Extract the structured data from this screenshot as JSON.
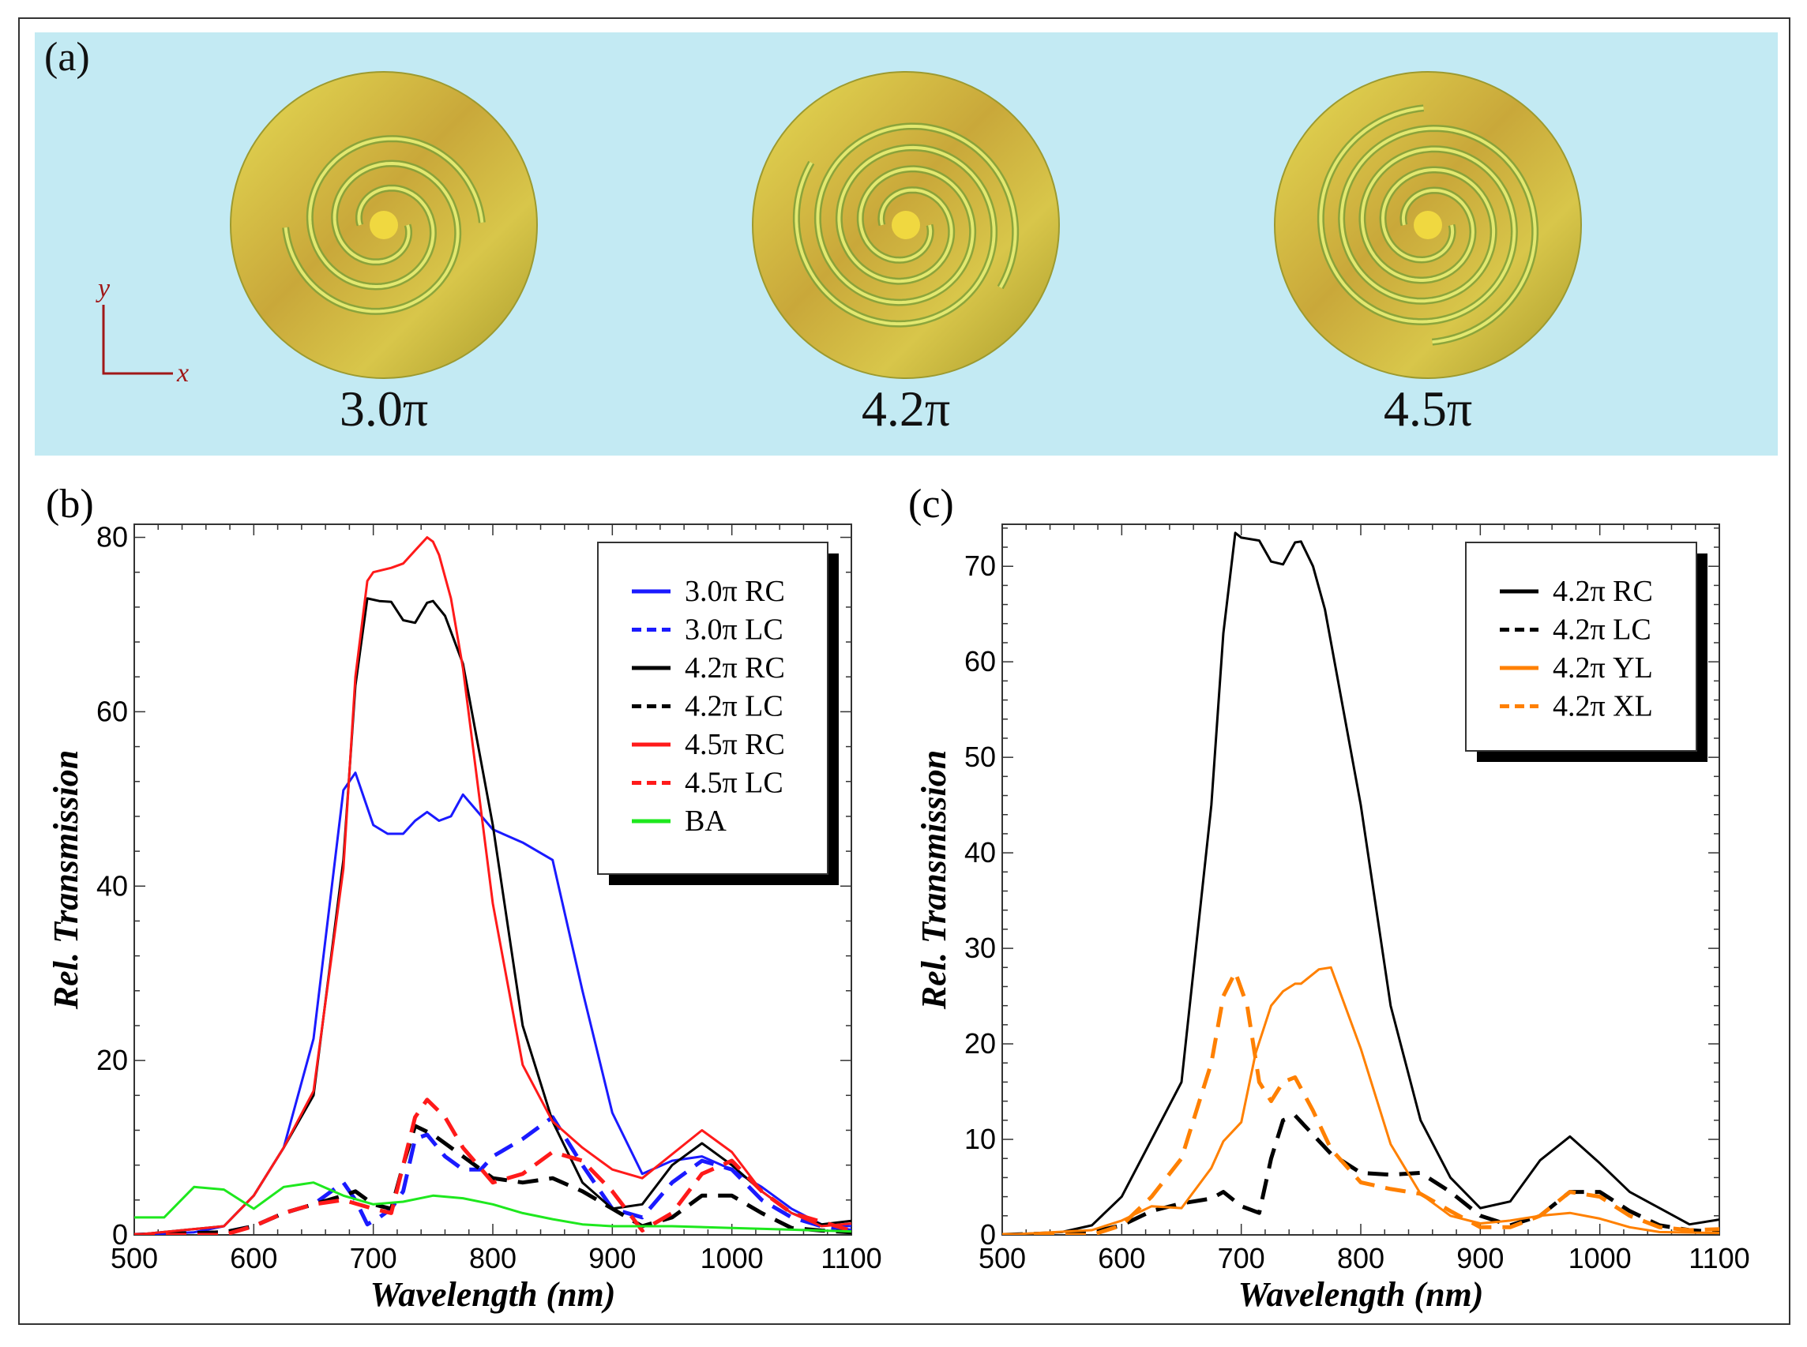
{
  "panel_a": {
    "label": "(a)",
    "axis_y": "y",
    "axis_x": "x",
    "discs": [
      {
        "label": "3.0π",
        "turns": 3.0
      },
      {
        "label": "4.2π",
        "turns": 4.2
      },
      {
        "label": "4.5π",
        "turns": 4.5
      }
    ],
    "colors": {
      "background": "#c3eaf3",
      "gold": "#c9b437",
      "axes": "#a01818"
    }
  },
  "chart_data": [
    {
      "panel_label": "(b)",
      "type": "line",
      "xlabel": "Wavelength (nm)",
      "ylabel": "Rel. Transmission",
      "xlim": [
        500,
        1100
      ],
      "ylim": [
        0,
        81.5
      ],
      "xticks": [
        500,
        600,
        700,
        800,
        900,
        1000,
        1100
      ],
      "yticks": [
        0,
        20,
        40,
        60,
        80
      ],
      "legend": "top-right",
      "series": [
        {
          "name": "3.0π RC",
          "color": "#1a1aff",
          "dash": false,
          "x": [
            500,
            550,
            575,
            600,
            625,
            650,
            675,
            685,
            700,
            712,
            725,
            735,
            745,
            755,
            765,
            775,
            800,
            825,
            850,
            875,
            900,
            925,
            950,
            975,
            1000,
            1025,
            1050,
            1075,
            1100
          ],
          "y": [
            0,
            0.3,
            1,
            4.5,
            10,
            22.5,
            51,
            53,
            47,
            46,
            46,
            47.5,
            48.5,
            47.5,
            48,
            50.5,
            46.5,
            45,
            43,
            28,
            14,
            7,
            8.5,
            9,
            7.5,
            5.5,
            3,
            1.2,
            1
          ]
        },
        {
          "name": "3.0π LC",
          "color": "#1a1aff",
          "dash": true,
          "x": [
            500,
            575,
            600,
            625,
            650,
            675,
            685,
            695,
            705,
            715,
            725,
            735,
            745,
            760,
            775,
            790,
            800,
            825,
            850,
            875,
            900,
            925,
            950,
            975,
            1000,
            1025,
            1050,
            1075,
            1100
          ],
          "y": [
            0,
            0.3,
            1,
            2.5,
            3.5,
            6,
            4,
            1.2,
            2,
            3,
            5,
            11,
            11.5,
            9,
            7.5,
            7.5,
            9,
            11,
            13.5,
            8,
            3,
            2,
            6,
            8.5,
            7.5,
            4,
            2,
            1,
            0.5
          ]
        },
        {
          "name": "4.2π RC",
          "color": "#000000",
          "dash": false,
          "x": [
            500,
            575,
            600,
            625,
            650,
            675,
            685,
            695,
            705,
            715,
            725,
            735,
            745,
            750,
            760,
            775,
            800,
            825,
            850,
            875,
            900,
            925,
            950,
            975,
            1000,
            1025,
            1050,
            1075,
            1100
          ],
          "y": [
            0,
            1,
            4.5,
            10,
            16,
            43,
            63,
            73,
            72.7,
            72.6,
            70.5,
            70.2,
            72.5,
            72.7,
            71,
            65.5,
            47,
            24,
            13,
            6,
            3,
            3.5,
            8,
            10.5,
            8,
            5,
            2.5,
            1.2,
            1.6
          ]
        },
        {
          "name": "4.2π LC",
          "color": "#000000",
          "dash": true,
          "x": [
            500,
            575,
            600,
            625,
            650,
            675,
            685,
            700,
            715,
            725,
            735,
            750,
            775,
            800,
            825,
            850,
            875,
            900,
            925,
            950,
            975,
            1000,
            1025,
            1050,
            1075,
            1100
          ],
          "y": [
            0,
            0.3,
            1,
            2.5,
            3.5,
            4.5,
            5,
            3.5,
            3,
            8,
            12.5,
            11.5,
            9,
            6.5,
            6,
            6.5,
            5,
            3,
            1,
            2,
            4.5,
            4.5,
            2.5,
            0.8,
            0.5,
            0.3
          ]
        },
        {
          "name": "4.5π RC",
          "color": "#ff1a1a",
          "dash": false,
          "x": [
            500,
            575,
            600,
            625,
            650,
            675,
            685,
            695,
            700,
            715,
            725,
            735,
            745,
            750,
            755,
            765,
            775,
            800,
            825,
            850,
            875,
            900,
            925,
            975,
            1000,
            1025,
            1050,
            1075,
            1100
          ],
          "y": [
            0,
            1,
            4.5,
            10,
            16.5,
            42,
            64,
            75,
            76,
            76.5,
            77,
            78.5,
            80,
            79.5,
            78,
            73,
            65,
            38,
            19.5,
            13,
            10,
            7.5,
            6.5,
            12,
            9.5,
            5,
            2.5,
            1,
            1.3
          ]
        },
        {
          "name": "4.5π LC",
          "color": "#ff1a1a",
          "dash": true,
          "x": [
            500,
            575,
            600,
            625,
            650,
            675,
            700,
            715,
            725,
            735,
            745,
            760,
            775,
            800,
            825,
            850,
            875,
            900,
            925,
            950,
            975,
            1000,
            1025,
            1050,
            1075,
            1100
          ],
          "y": [
            0,
            0,
            1,
            2.5,
            3.5,
            4,
            3,
            2.5,
            8,
            13.5,
            15.5,
            13.5,
            10,
            6,
            7,
            9.5,
            8.5,
            5,
            0.5,
            2.5,
            7,
            8.5,
            5,
            2.5,
            1.5,
            0.5
          ]
        },
        {
          "name": "BA",
          "color": "#1ee81e",
          "dash": false,
          "x": [
            500,
            525,
            550,
            575,
            600,
            625,
            650,
            675,
            700,
            725,
            750,
            775,
            800,
            825,
            850,
            875,
            900,
            950,
            1000,
            1050,
            1100
          ],
          "y": [
            2,
            2,
            5.5,
            5.2,
            3,
            5.5,
            6,
            4.5,
            3.5,
            3.8,
            4.5,
            4.2,
            3.5,
            2.5,
            1.8,
            1.2,
            1,
            1,
            0.8,
            0.6,
            0.4
          ]
        }
      ]
    },
    {
      "panel_label": "(c)",
      "type": "line",
      "xlabel": "Wavelength (nm)",
      "ylabel": "Rel. Transmission",
      "xlim": [
        500,
        1100
      ],
      "ylim": [
        0,
        74.4
      ],
      "xticks": [
        500,
        600,
        700,
        800,
        900,
        1000,
        1100
      ],
      "yticks": [
        0,
        10,
        20,
        30,
        40,
        50,
        60,
        70
      ],
      "legend": "top-right",
      "series": [
        {
          "name": "4.2π RC",
          "color": "#000000",
          "dash": false,
          "x": [
            500,
            550,
            575,
            600,
            625,
            650,
            675,
            685,
            695,
            700,
            715,
            725,
            735,
            745,
            750,
            760,
            770,
            800,
            825,
            850,
            875,
            900,
            925,
            950,
            975,
            1000,
            1025,
            1050,
            1075,
            1100
          ],
          "y": [
            0,
            0.3,
            1,
            4,
            10,
            16,
            45,
            63,
            73.5,
            73,
            72.7,
            70.5,
            70.2,
            72.5,
            72.6,
            70,
            65.5,
            45,
            24,
            12,
            6,
            2.8,
            3.5,
            7.8,
            10.3,
            7.5,
            4.5,
            2.8,
            1.1,
            1.6
          ]
        },
        {
          "name": "4.2π LC",
          "color": "#000000",
          "dash": true,
          "x": [
            500,
            575,
            600,
            625,
            650,
            675,
            685,
            700,
            715,
            725,
            735,
            745,
            760,
            775,
            800,
            825,
            850,
            875,
            900,
            925,
            950,
            975,
            1000,
            1025,
            1050,
            1075,
            1100
          ],
          "y": [
            0,
            0.3,
            1,
            2.5,
            3.3,
            3.8,
            4.5,
            3,
            2.3,
            8,
            12,
            12.5,
            10.5,
            8.5,
            6.5,
            6.3,
            6.5,
            4.5,
            2,
            1,
            2,
            4.5,
            4.5,
            2.5,
            1,
            0.5,
            0.3
          ]
        },
        {
          "name": "4.2π YL",
          "color": "#ff8000",
          "dash": false,
          "x": [
            500,
            575,
            600,
            625,
            650,
            675,
            685,
            700,
            712,
            725,
            735,
            745,
            750,
            765,
            775,
            800,
            825,
            850,
            875,
            900,
            925,
            950,
            975,
            1000,
            1025,
            1050,
            1100
          ],
          "y": [
            0,
            0.5,
            1.5,
            3,
            2.8,
            7,
            9.8,
            11.8,
            19,
            24,
            25.5,
            26.3,
            26.3,
            27.8,
            28,
            19.5,
            9.5,
            4.3,
            2,
            1.2,
            1.5,
            2,
            2.3,
            1.7,
            0.8,
            0.3,
            0.2
          ]
        },
        {
          "name": "4.2π XL",
          "color": "#ff8000",
          "dash": true,
          "x": [
            500,
            575,
            600,
            625,
            650,
            675,
            685,
            695,
            705,
            715,
            725,
            735,
            745,
            760,
            775,
            800,
            825,
            850,
            875,
            900,
            925,
            950,
            975,
            1000,
            1025,
            1050,
            1075,
            1100
          ],
          "y": [
            0,
            0,
            1,
            4,
            8,
            18,
            25,
            27.5,
            24,
            16,
            14,
            16,
            16.5,
            13,
            9,
            5.5,
            4.8,
            4.3,
            2.5,
            0.8,
            0.8,
            2,
            4.5,
            4,
            2,
            0.8,
            0.5,
            0.6
          ]
        }
      ]
    }
  ]
}
